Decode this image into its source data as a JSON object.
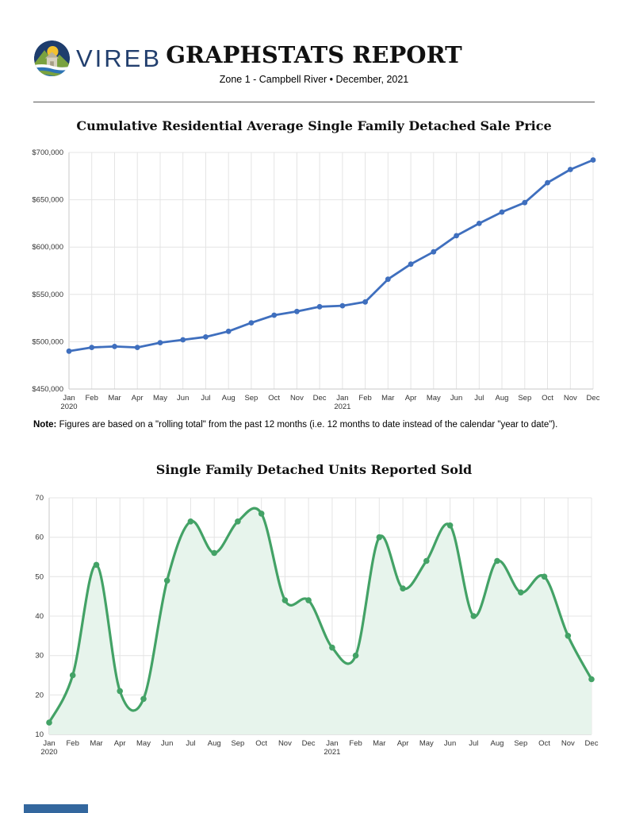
{
  "header": {
    "logo_text": "VIREB",
    "title": "GRAPHSTATS REPORT",
    "subtitle": "Zone 1 - Campbell River  •  December, 2021"
  },
  "note": {
    "label": "Note:",
    "text": " Figures are based on a \"rolling total\" from the past 12 months (i.e. 12 months to date instead of the calendar \"year to date\")."
  },
  "colors": {
    "price_line": "#3f6fbe",
    "units_line": "#43a266",
    "units_fill": "#e7f4ec",
    "grid": "#e4e4e4",
    "axis": "#c9c9c9",
    "logo_navy": "#1e3d6d",
    "footer_accent": "#33679e"
  },
  "chart_data": [
    {
      "type": "line",
      "title": "Cumulative Residential Average Single Family Detached Sale Price",
      "x": [
        "Jan",
        "Feb",
        "Mar",
        "Apr",
        "May",
        "Jun",
        "Jul",
        "Aug",
        "Sep",
        "Oct",
        "Nov",
        "Dec",
        "Jan",
        "Feb",
        "Mar",
        "Apr",
        "May",
        "Jun",
        "Jul",
        "Aug",
        "Sep",
        "Oct",
        "Nov",
        "Dec"
      ],
      "x_years": {
        "0": "2020",
        "12": "2021"
      },
      "values": [
        490000,
        494000,
        495000,
        494000,
        499000,
        502000,
        505000,
        511000,
        520000,
        528000,
        532000,
        537000,
        538000,
        542000,
        566000,
        582000,
        595000,
        612000,
        625000,
        637000,
        647000,
        668000,
        682000,
        692000
      ],
      "ylim": [
        450000,
        700000
      ],
      "y_ticks": [
        {
          "v": 450000,
          "label": "$450,000"
        },
        {
          "v": 500000,
          "label": "$500,000"
        },
        {
          "v": 550000,
          "label": "$550,000"
        },
        {
          "v": 600000,
          "label": "$600,000"
        },
        {
          "v": 650000,
          "label": "$650,000"
        },
        {
          "v": 700000,
          "label": "$700,000"
        }
      ],
      "xlabel": "",
      "ylabel": "",
      "grid": true,
      "legend": "none",
      "smooth": false,
      "line_color": "#3f6fbe",
      "fill_color": "",
      "line_width": 2.8,
      "marker_radius": 3.4
    },
    {
      "type": "area",
      "title": "Single Family Detached Units Reported Sold",
      "x": [
        "Jan",
        "Feb",
        "Mar",
        "Apr",
        "May",
        "Jun",
        "Jul",
        "Aug",
        "Sep",
        "Oct",
        "Nov",
        "Dec",
        "Jan",
        "Feb",
        "Mar",
        "Apr",
        "May",
        "Jun",
        "Jul",
        "Aug",
        "Sep",
        "Oct",
        "Nov",
        "Dec"
      ],
      "x_years": {
        "0": "2020",
        "12": "2021"
      },
      "values": [
        13,
        25,
        53,
        21,
        19,
        49,
        64,
        56,
        64,
        66,
        44,
        44,
        32,
        30,
        60,
        47,
        54,
        63,
        40,
        54,
        46,
        50,
        35,
        24
      ],
      "ylim": [
        10,
        70
      ],
      "y_ticks": [
        {
          "v": 10,
          "label": "10"
        },
        {
          "v": 20,
          "label": "20"
        },
        {
          "v": 30,
          "label": "30"
        },
        {
          "v": 40,
          "label": "40"
        },
        {
          "v": 50,
          "label": "50"
        },
        {
          "v": 60,
          "label": "60"
        },
        {
          "v": 70,
          "label": "70"
        }
      ],
      "xlabel": "",
      "ylabel": "",
      "grid": true,
      "legend": "none",
      "smooth": true,
      "line_color": "#43a266",
      "fill_color": "#e7f4ec",
      "line_width": 3.2,
      "marker_radius": 3.8
    }
  ]
}
